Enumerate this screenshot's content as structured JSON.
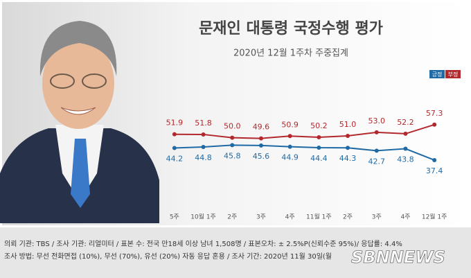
{
  "chart_data": {
    "type": "line",
    "title": "문재인 대통령 국정수행 평가",
    "subtitle": "2020년 12월 1주차 주중집계",
    "categories": [
      "5주",
      "10월 1주",
      "2주",
      "3주",
      "4주",
      "11월 1주",
      "2주",
      "3주",
      "4주",
      "12월 1주"
    ],
    "series": [
      {
        "name": "긍정",
        "color": "#1f6aa5",
        "values": [
          44.2,
          44.8,
          45.8,
          45.6,
          44.9,
          44.4,
          44.3,
          42.7,
          43.8,
          37.4
        ],
        "value_labels": [
          "44.2",
          "44.8",
          "45.8",
          "45.6",
          "44.9",
          "44.4",
          "44.3",
          "42.7",
          "43.8",
          "37.4"
        ]
      },
      {
        "name": "부정",
        "color": "#b3282d",
        "values": [
          51.9,
          51.8,
          50.0,
          49.6,
          50.9,
          50.2,
          51.0,
          53.0,
          52.2,
          57.3
        ],
        "value_labels": [
          "51.9",
          "51.8",
          "50.0",
          "49.6",
          "50.9",
          "50.2",
          "51.0",
          "53.0",
          "52.2",
          "57.3"
        ]
      }
    ],
    "ylim": [
      30,
      65
    ],
    "legend": "top-right",
    "notes": [
      "의뢰 기관: TBS / 조사 기관: 리얼미터 / 표본 수: 전국 만18세 이상 남녀 1,508명 / 표본오차: ± 2.5%P(신뢰수준 95%)/ 응답률: 4.4%",
      "조사 방법: 무선 전화면접 (10%), 무선 (70%), 유선 (20%)  자동 응답 혼용 / 조사 기간: 2020년 11월 30일(월"
    ],
    "watermark": "SBNNEWS"
  }
}
